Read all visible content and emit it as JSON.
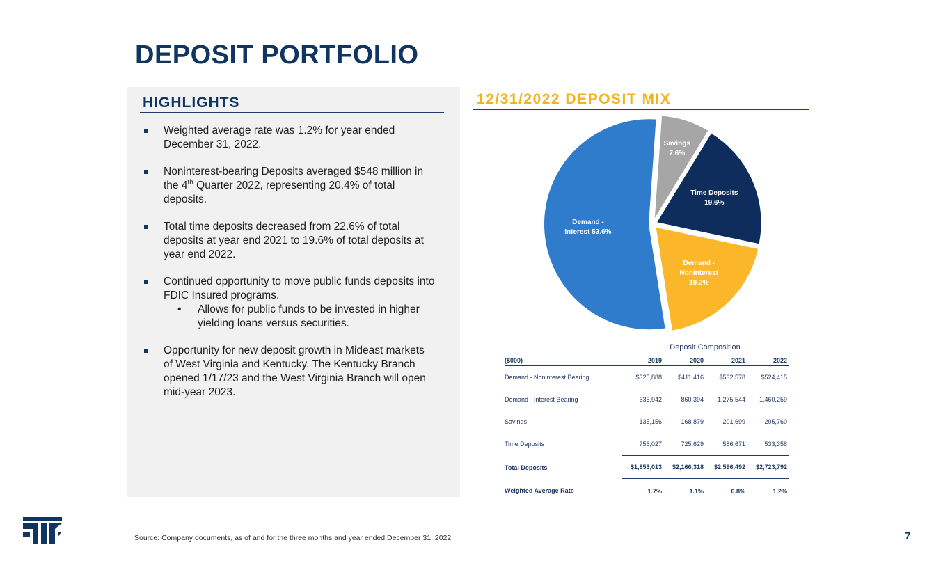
{
  "title": "DEPOSIT PORTFOLIO",
  "highlights": {
    "heading": "HIGHLIGHTS",
    "b1": "Weighted average rate was 1.2% for year ended December 31, 2022.",
    "b2_pre": "Noninterest-bearing Deposits averaged $548 million in the 4",
    "b2_sup": "th",
    "b2_post": " Quarter 2022, representing 20.4% of total deposits.",
    "b3": "Total time deposits decreased from 22.6% of total deposits at year end 2021 to 19.6% of total deposits at year end 2022.",
    "b4": "Continued opportunity to move public funds deposits into FDIC Insured programs.",
    "b4_sub": "Allows for public funds to be invested in higher yielding loans versus securities.",
    "b5": "Opportunity for new deposit growth in Mideast markets of West Virginia and Kentucky.  The Kentucky Branch opened 1/17/23 and the West Virginia Branch will open mid-year 2023."
  },
  "chart_data": {
    "type": "pie",
    "title": "12/31/2022 DEPOSIT MIX",
    "slices": [
      {
        "label_lines": [
          "Savings",
          "7.6%"
        ],
        "label": "Savings",
        "value": 7.6,
        "color": "#a6a6a6"
      },
      {
        "label_lines": [
          "Time Deposits",
          "19.6%"
        ],
        "label": "Time Deposits",
        "value": 19.6,
        "color": "#0e2d5c"
      },
      {
        "label_lines": [
          "Demand -",
          "Noninterest",
          "19.2%"
        ],
        "label": "Demand - Noninterest",
        "value": 19.2,
        "color": "#fbb62a"
      },
      {
        "label_lines": [
          "Demand -",
          "Interest 53.6%"
        ],
        "label": "Demand - Interest",
        "value": 53.6,
        "color": "#2f7bcc"
      }
    ]
  },
  "table": {
    "caption": "Deposit Composition",
    "col_label": "($000)",
    "years": [
      "2019",
      "2020",
      "2021",
      "2022"
    ],
    "rows": [
      {
        "label": "Demand - Noninterest Bearing",
        "values": [
          "$325,888",
          "$411,416",
          "$532,578",
          "$524,415"
        ]
      },
      {
        "label": "Demand - Interest Bearing",
        "values": [
          "635,942",
          "860,394",
          "1,275,544",
          "1,460,259"
        ]
      },
      {
        "label": "Savings",
        "values": [
          "135,156",
          "168,879",
          "201,699",
          "205,760"
        ]
      },
      {
        "label": "Time Deposits",
        "values": [
          "756,027",
          "725,629",
          "586,671",
          "533,358"
        ]
      },
      {
        "label": "Total Deposits",
        "values": [
          "$1,853,013",
          "$2,166,318",
          "$2,596,492",
          "$2,723,792"
        ]
      },
      {
        "label": "Weighted Average Rate",
        "values": [
          "1.7%",
          "1.1%",
          "0.8%",
          "1.2%"
        ]
      }
    ]
  },
  "footer": {
    "source": "Source: Company documents, as of and for the three months and year ended December 31, 2022",
    "page": "7"
  },
  "colors": {
    "navy": "#0f3560",
    "gold": "#f5b11c"
  }
}
